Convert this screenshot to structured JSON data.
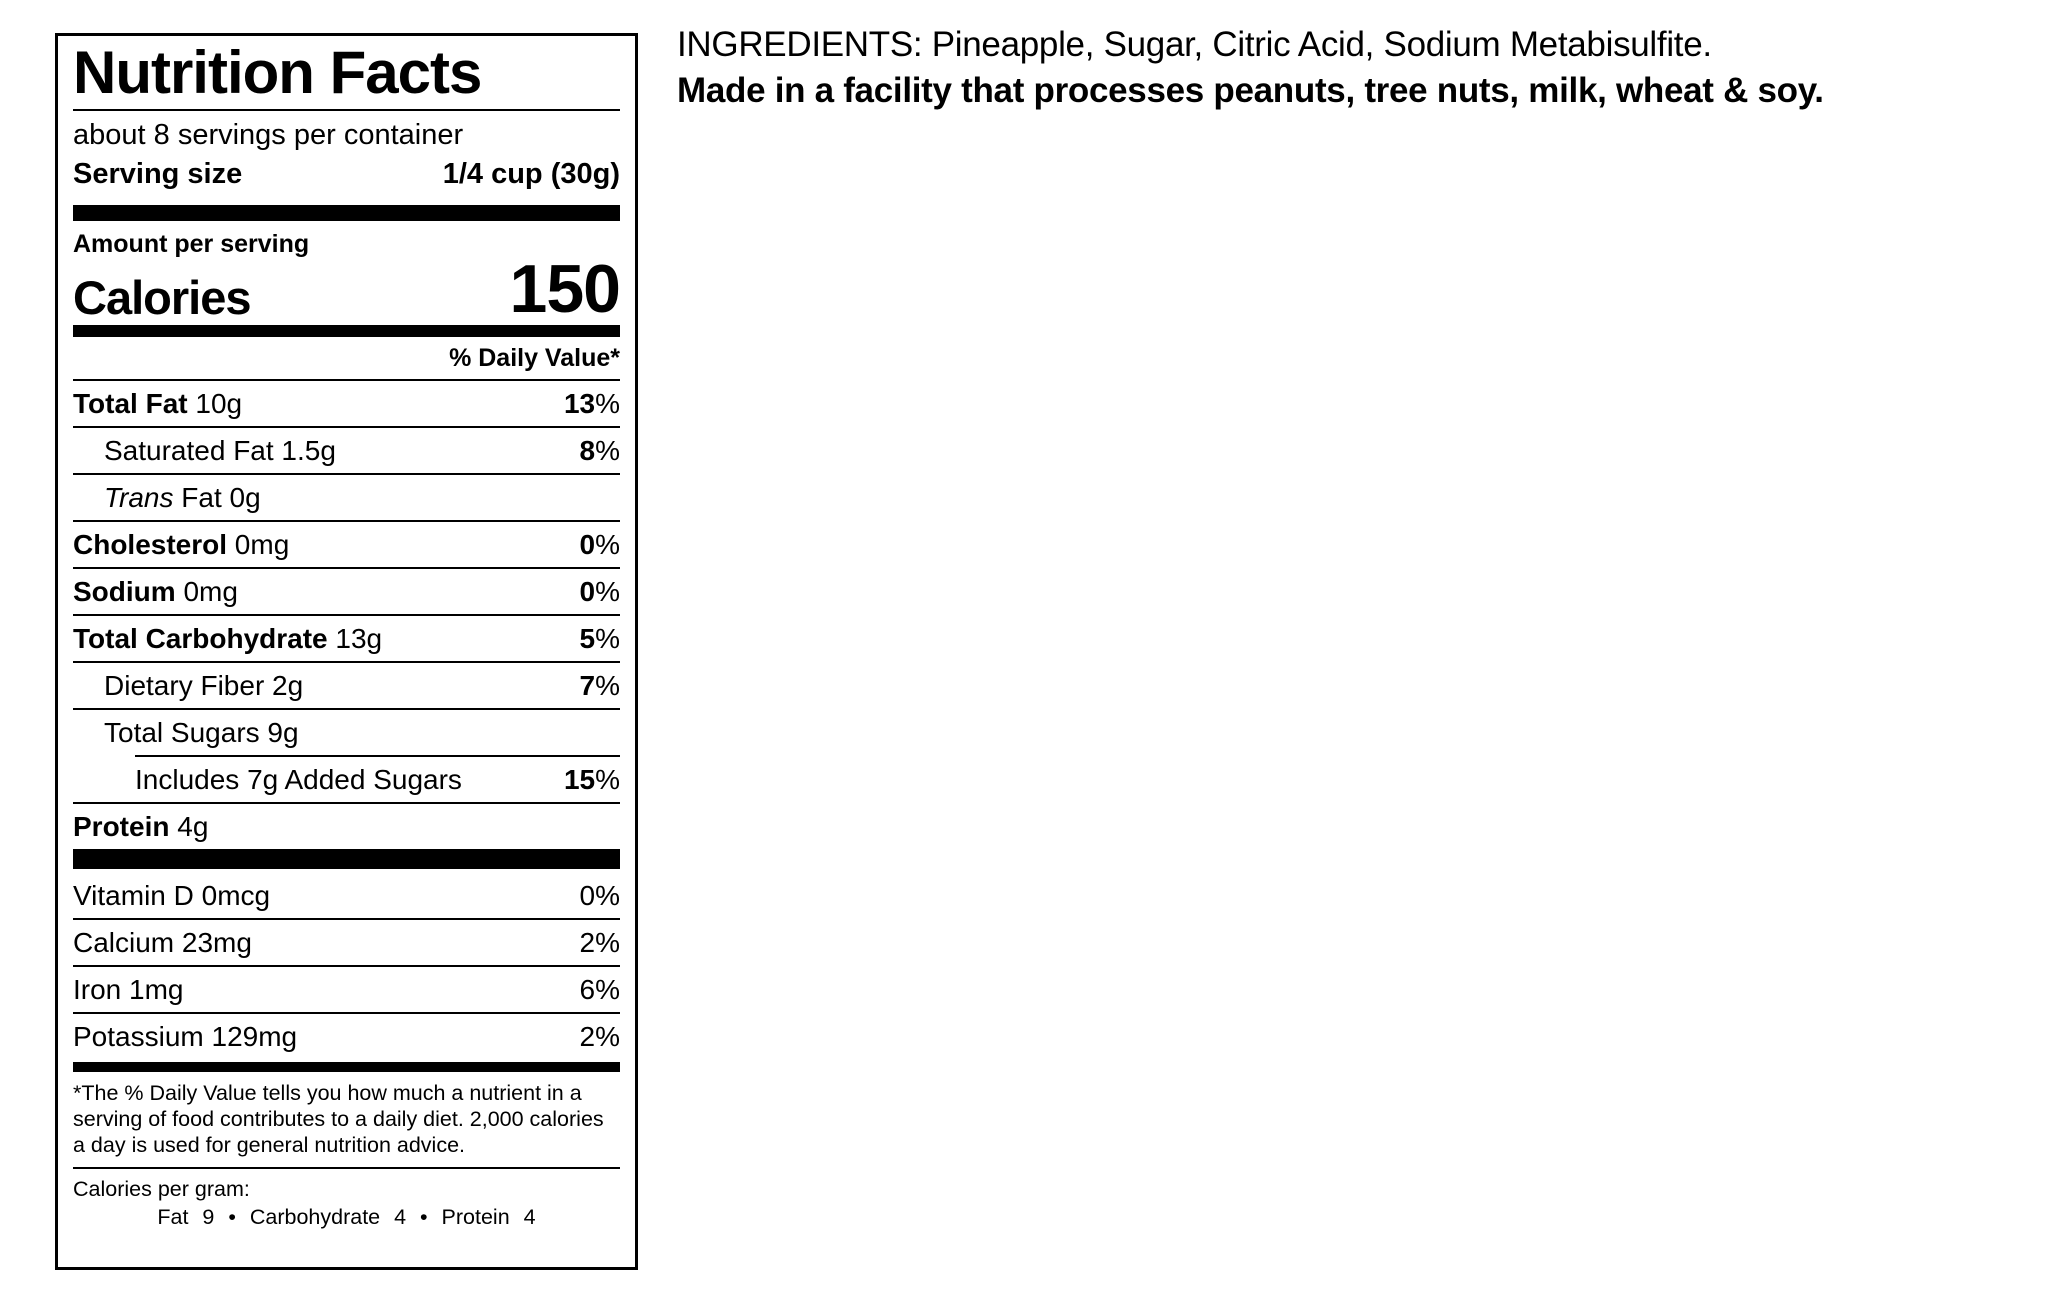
{
  "label": {
    "title": "Nutrition Facts",
    "servings_per_container": "about 8 servings per container",
    "serving_size_label": "Serving size",
    "serving_size_value": "1/4 cup (30g)",
    "amount_per_serving": "Amount per serving",
    "calories_label": "Calories",
    "calories_value": "150",
    "daily_value_header": "% Daily Value*",
    "rows": [
      {
        "name_bold": "Total Fat",
        "name_rest": " 10g",
        "pct": "13",
        "pct_sign": "%"
      },
      {
        "name_rest": "Saturated Fat 1.5g",
        "pct": "8",
        "pct_sign": "%"
      },
      {
        "name_italic": "Trans",
        "name_rest": " Fat 0g"
      },
      {
        "name_bold": "Cholesterol",
        "name_rest": " 0mg",
        "pct": "0",
        "pct_sign": "%"
      },
      {
        "name_bold": "Sodium",
        "name_rest": " 0mg",
        "pct": "0",
        "pct_sign": "%"
      },
      {
        "name_bold": "Total Carbohydrate",
        "name_rest": " 13g",
        "pct": "5",
        "pct_sign": "%"
      },
      {
        "name_rest": "Dietary Fiber 2g",
        "pct": "7",
        "pct_sign": "%"
      },
      {
        "name_rest": "Total Sugars 9g"
      },
      {
        "name_rest": "Includes 7g Added Sugars",
        "pct": "15",
        "pct_sign": "%"
      },
      {
        "name_bold": "Protein",
        "name_rest": " 4g"
      }
    ],
    "micronutrients": [
      {
        "name": "Vitamin D 0mcg",
        "pct": "0%"
      },
      {
        "name": "Calcium 23mg",
        "pct": "2%"
      },
      {
        "name": "Iron 1mg",
        "pct": "6%"
      },
      {
        "name": "Potassium 129mg",
        "pct": "2%"
      }
    ],
    "footnote": "*The % Daily Value tells you how much a nutrient in a serving of food contributes to a daily diet. 2,000 calories a day is used for general nutrition advice.",
    "calories_per_gram_label": "Calories per gram:",
    "calories_per_gram_values": "Fat 9 • Carbohydrate 4 • Protein 4"
  },
  "ingredients": {
    "line1": "INGREDIENTS: Pineapple, Sugar, Citric Acid, Sodium Metabisulfite.",
    "line2": "Made in a facility that processes peanuts, tree nuts, milk, wheat & soy."
  },
  "colors": {
    "text": "#000000",
    "background": "#ffffff"
  }
}
